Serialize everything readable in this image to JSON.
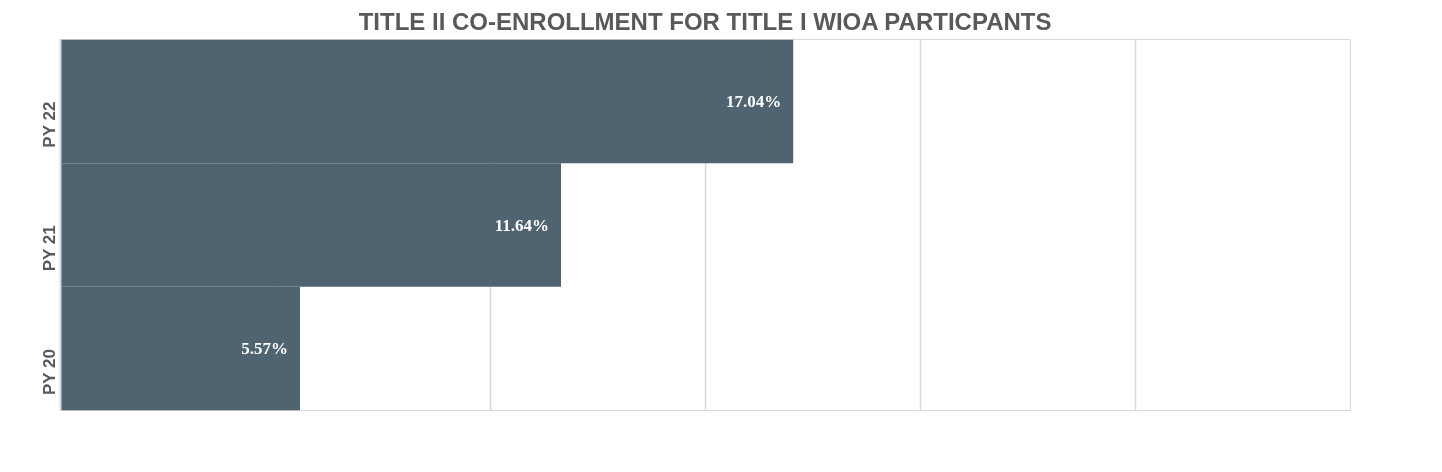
{
  "chart_data": {
    "type": "bar",
    "orientation": "horizontal",
    "title": "TITLE II CO-ENROLLMENT FOR TITLE I WIOA PARTICPANTS",
    "categories": [
      "PY 22",
      "PY 21",
      "PY 20"
    ],
    "values": [
      17.04,
      11.64,
      5.57
    ],
    "value_labels": [
      "17.04%",
      "11.64%",
      "5.57%"
    ],
    "color": "#4f6470",
    "xlim": [
      0,
      30
    ],
    "xticks": [
      {
        "value": 0,
        "label": null
      },
      {
        "value": 5,
        "label": null
      },
      {
        "value": 10,
        "label": null
      },
      {
        "value": 15,
        "label": null
      },
      {
        "value": 20,
        "label": null
      },
      {
        "value": 25,
        "label": null
      },
      {
        "value": 30,
        "label": null
      }
    ],
    "grid": "x",
    "tick_labels": "y"
  }
}
